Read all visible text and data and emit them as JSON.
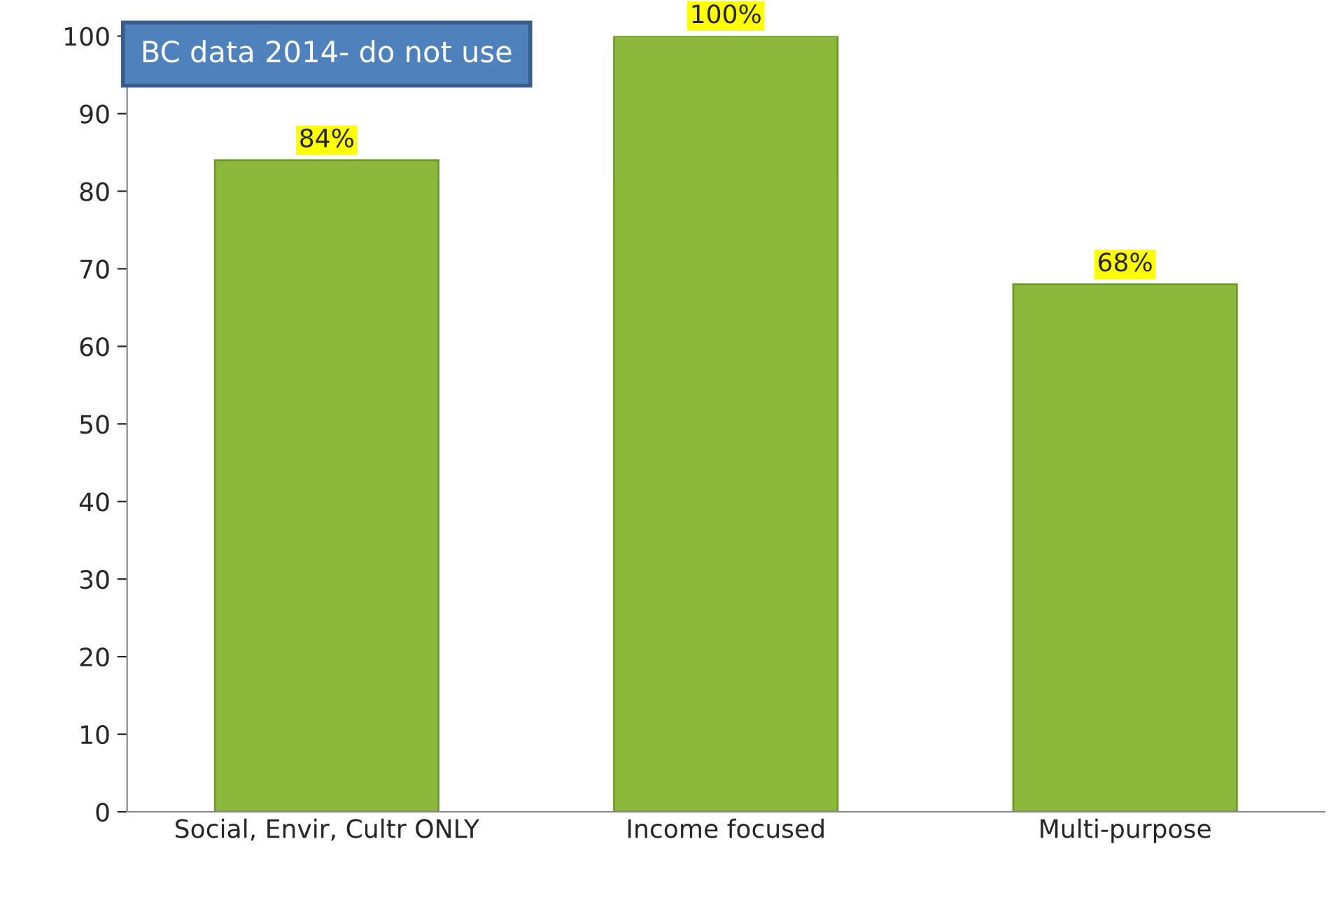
{
  "chart_data": {
    "type": "bar",
    "categories": [
      "Social, Envir, Cultr ONLY",
      "Income focused",
      "Multi-purpose"
    ],
    "values": [
      84,
      100,
      68
    ],
    "value_labels": [
      "84%",
      "100%",
      "68%"
    ],
    "color": "#8cb83c",
    "ylim": [
      0,
      100
    ],
    "yticks": [
      0,
      10,
      20,
      30,
      40,
      50,
      60,
      70,
      80,
      90,
      100
    ],
    "grid": false,
    "legend": false,
    "annotations": [
      "BC data 2014- do not use"
    ]
  }
}
